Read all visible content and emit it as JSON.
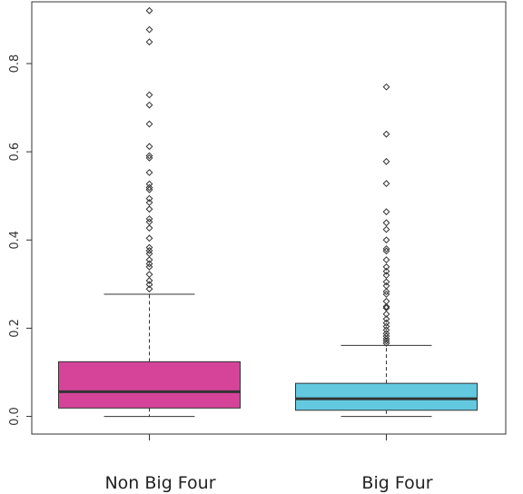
{
  "chart_data": {
    "type": "boxplot",
    "title": "",
    "xlabel": "",
    "ylabel": "",
    "ylim": [
      -0.04,
      0.94
    ],
    "y_ticks": [
      0.0,
      0.2,
      0.4,
      0.6,
      0.8
    ],
    "y_tick_labels": [
      "0.0",
      "0.2",
      "0.4",
      "0.6",
      "0.8"
    ],
    "grid": false,
    "categories": [
      "Non Big Four",
      "Big Four"
    ],
    "boxes": [
      {
        "label": "Non Big Four",
        "color": "#d6449a",
        "whisker_low": 0.0,
        "q1": 0.019,
        "median": 0.056,
        "q3": 0.124,
        "whisker_high": 0.277,
        "outliers": [
          0.92,
          0.877,
          0.849,
          0.729,
          0.706,
          0.663,
          0.612,
          0.591,
          0.586,
          0.553,
          0.527,
          0.519,
          0.514,
          0.494,
          0.485,
          0.47,
          0.448,
          0.441,
          0.427,
          0.404,
          0.383,
          0.376,
          0.369,
          0.355,
          0.346,
          0.339,
          0.322,
          0.308,
          0.299,
          0.289
        ]
      },
      {
        "label": "Big Four",
        "color": "#62c9df",
        "whisker_low": 0.0,
        "q1": 0.014,
        "median": 0.04,
        "q3": 0.075,
        "whisker_high": 0.161,
        "outliers": [
          0.747,
          0.64,
          0.578,
          0.528,
          0.464,
          0.439,
          0.424,
          0.4,
          0.38,
          0.375,
          0.355,
          0.339,
          0.329,
          0.32,
          0.305,
          0.296,
          0.283,
          0.277,
          0.261,
          0.249,
          0.246,
          0.232,
          0.221,
          0.212,
          0.204,
          0.196,
          0.188,
          0.182,
          0.176,
          0.171,
          0.166
        ]
      }
    ]
  }
}
